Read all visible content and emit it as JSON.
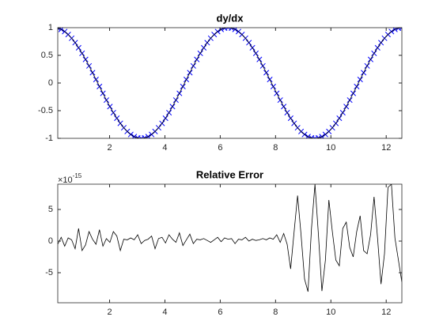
{
  "chart_data": [
    {
      "type": "line",
      "title": "dy/dx",
      "x": [
        0.126,
        0.251,
        0.377,
        0.503,
        0.628,
        0.754,
        0.88,
        1.005,
        1.131,
        1.257,
        1.382,
        1.508,
        1.634,
        1.759,
        1.885,
        2.011,
        2.136,
        2.262,
        2.388,
        2.513,
        2.639,
        2.765,
        2.89,
        3.016,
        3.142,
        3.267,
        3.393,
        3.519,
        3.644,
        3.77,
        3.896,
        4.021,
        4.147,
        4.273,
        4.398,
        4.524,
        4.65,
        4.775,
        4.901,
        5.027,
        5.152,
        5.278,
        5.404,
        5.529,
        5.655,
        5.781,
        5.906,
        6.032,
        6.158,
        6.283,
        6.409,
        6.535,
        6.66,
        6.786,
        6.912,
        7.037,
        7.163,
        7.288,
        7.414,
        7.54,
        7.665,
        7.791,
        7.917,
        8.042,
        8.168,
        8.294,
        8.419,
        8.545,
        8.671,
        8.796,
        8.922,
        9.048,
        9.173,
        9.299,
        9.425,
        9.55,
        9.676,
        9.802,
        9.927,
        10.053,
        10.179,
        10.304,
        10.43,
        10.556,
        10.681,
        10.807,
        10.933,
        11.058,
        11.184,
        11.31,
        11.435,
        11.561,
        11.687,
        11.812,
        11.938,
        12.064,
        12.189,
        12.315,
        12.441,
        12.566
      ],
      "series": [
        {
          "color": "#0000ff",
          "marker": "x",
          "values": [
            0.992,
            0.969,
            0.93,
            0.876,
            0.809,
            0.729,
            0.637,
            0.536,
            0.426,
            0.309,
            0.187,
            0.063,
            -0.063,
            -0.187,
            -0.309,
            -0.426,
            -0.536,
            -0.637,
            -0.729,
            -0.809,
            -0.876,
            -0.93,
            -0.969,
            -0.992,
            -1,
            -0.992,
            -0.969,
            -0.93,
            -0.876,
            -0.809,
            -0.729,
            -0.637,
            -0.536,
            -0.426,
            -0.309,
            -0.187,
            -0.063,
            0.063,
            0.187,
            0.309,
            0.426,
            0.536,
            0.637,
            0.729,
            0.809,
            0.876,
            0.93,
            0.969,
            0.992,
            1,
            0.992,
            0.969,
            0.93,
            0.876,
            0.809,
            0.729,
            0.637,
            0.536,
            0.426,
            0.309,
            0.187,
            0.063,
            -0.063,
            -0.187,
            -0.309,
            -0.426,
            -0.536,
            -0.637,
            -0.729,
            -0.809,
            -0.876,
            -0.93,
            -0.969,
            -0.992,
            -1,
            -0.992,
            -0.969,
            -0.93,
            -0.876,
            -0.809,
            -0.729,
            -0.637,
            -0.536,
            -0.426,
            -0.309,
            -0.187,
            -0.063,
            0.063,
            0.187,
            0.309,
            0.426,
            0.536,
            0.637,
            0.729,
            0.809,
            0.876,
            0.93,
            0.969,
            0.992,
            1
          ]
        },
        {
          "color": "#000000",
          "values": [
            0.992,
            0.969,
            0.93,
            0.876,
            0.809,
            0.729,
            0.637,
            0.536,
            0.426,
            0.309,
            0.187,
            0.063,
            -0.063,
            -0.187,
            -0.309,
            -0.426,
            -0.536,
            -0.637,
            -0.729,
            -0.809,
            -0.876,
            -0.93,
            -0.969,
            -0.992,
            -1,
            -0.992,
            -0.969,
            -0.93,
            -0.876,
            -0.809,
            -0.729,
            -0.637,
            -0.536,
            -0.426,
            -0.309,
            -0.187,
            -0.063,
            0.063,
            0.187,
            0.309,
            0.426,
            0.536,
            0.637,
            0.729,
            0.809,
            0.876,
            0.93,
            0.969,
            0.992,
            1,
            0.992,
            0.969,
            0.93,
            0.876,
            0.809,
            0.729,
            0.637,
            0.536,
            0.426,
            0.309,
            0.187,
            0.063,
            -0.063,
            -0.187,
            -0.309,
            -0.426,
            -0.536,
            -0.637,
            -0.729,
            -0.809,
            -0.876,
            -0.93,
            -0.969,
            -0.992,
            -1,
            -0.992,
            -0.969,
            -0.93,
            -0.876,
            -0.809,
            -0.729,
            -0.637,
            -0.536,
            -0.426,
            -0.309,
            -0.187,
            -0.063,
            0.063,
            0.187,
            0.309,
            0.426,
            0.536,
            0.637,
            0.729,
            0.809,
            0.876,
            0.93,
            0.969,
            0.992,
            1
          ]
        }
      ],
      "xlim": [
        0.126,
        12.566
      ],
      "xticks": [
        2,
        4,
        6,
        8,
        10,
        12
      ],
      "ylim": [
        -1,
        1
      ],
      "yticks": [
        -1,
        -0.5,
        0,
        0.5,
        1
      ]
    },
    {
      "type": "line",
      "title": "Relative Error",
      "axis_multiplier": {
        "base": "×10",
        "exponent": "-15"
      },
      "x": [
        0.126,
        0.251,
        0.377,
        0.503,
        0.628,
        0.754,
        0.88,
        1.005,
        1.131,
        1.257,
        1.382,
        1.508,
        1.634,
        1.759,
        1.885,
        2.011,
        2.136,
        2.262,
        2.388,
        2.513,
        2.639,
        2.765,
        2.89,
        3.016,
        3.142,
        3.267,
        3.393,
        3.519,
        3.644,
        3.77,
        3.896,
        4.021,
        4.147,
        4.273,
        4.398,
        4.524,
        4.65,
        4.775,
        4.901,
        5.027,
        5.152,
        5.278,
        5.404,
        5.529,
        5.655,
        5.781,
        5.906,
        6.032,
        6.158,
        6.283,
        6.409,
        6.535,
        6.66,
        6.786,
        6.912,
        7.037,
        7.163,
        7.288,
        7.414,
        7.54,
        7.665,
        7.791,
        7.917,
        8.042,
        8.168,
        8.294,
        8.419,
        8.545,
        8.671,
        8.796,
        8.922,
        9.048,
        9.173,
        9.299,
        9.425,
        9.55,
        9.676,
        9.802,
        9.927,
        10.053,
        10.179,
        10.304,
        10.43,
        10.556,
        10.681,
        10.807,
        10.933,
        11.058,
        11.184,
        11.31,
        11.435,
        11.561,
        11.687,
        11.812,
        11.938,
        12.064,
        12.189,
        12.315,
        12.441,
        12.566
      ],
      "series": [
        {
          "color": "#000000",
          "values": [
            -0.5,
            0.6,
            -0.8,
            0.5,
            0.2,
            -1.2,
            2.0,
            -1.5,
            -0.6,
            1.5,
            0.3,
            -0.5,
            1.8,
            -0.8,
            0.4,
            -0.2,
            1.5,
            0.8,
            -1.5,
            0.3,
            0.2,
            0.5,
            0.2,
            1.0,
            -0.4,
            0.1,
            0.3,
            0.8,
            -1.2,
            0.4,
            0.6,
            -0.3,
            1.0,
            0.3,
            -0.2,
            1.3,
            -0.7,
            0.2,
            1.1,
            -0.4,
            0.3,
            0.2,
            0.4,
            0.1,
            -0.2,
            0.2,
            0.6,
            -0.1,
            0.5,
            0.3,
            0.4,
            -0.4,
            0.3,
            0.2,
            0.6,
            0.0,
            0.3,
            0.1,
            0.2,
            0.4,
            0.2,
            0.5,
            0.3,
            1.0,
            -0.2,
            1.2,
            -0.5,
            -4.4,
            1.5,
            7.2,
            1.0,
            -6.0,
            -8.0,
            2.0,
            9.0,
            1.0,
            -7.9,
            -3.0,
            6.5,
            1.5,
            -3.0,
            -3.9,
            2.0,
            3.0,
            -1.0,
            -2.5,
            1.5,
            4.0,
            -1.5,
            -2.0,
            1.0,
            7.0,
            0.5,
            -6.8,
            -2.0,
            8.5,
            9.0,
            0.5,
            -3.0,
            -6.5
          ]
        }
      ],
      "xlim": [
        0.126,
        12.566
      ],
      "xticks": [
        2,
        4,
        6,
        8,
        10,
        12
      ],
      "ylim": [
        -9.75,
        9
      ],
      "yticks": [
        -5,
        0,
        5
      ]
    }
  ]
}
